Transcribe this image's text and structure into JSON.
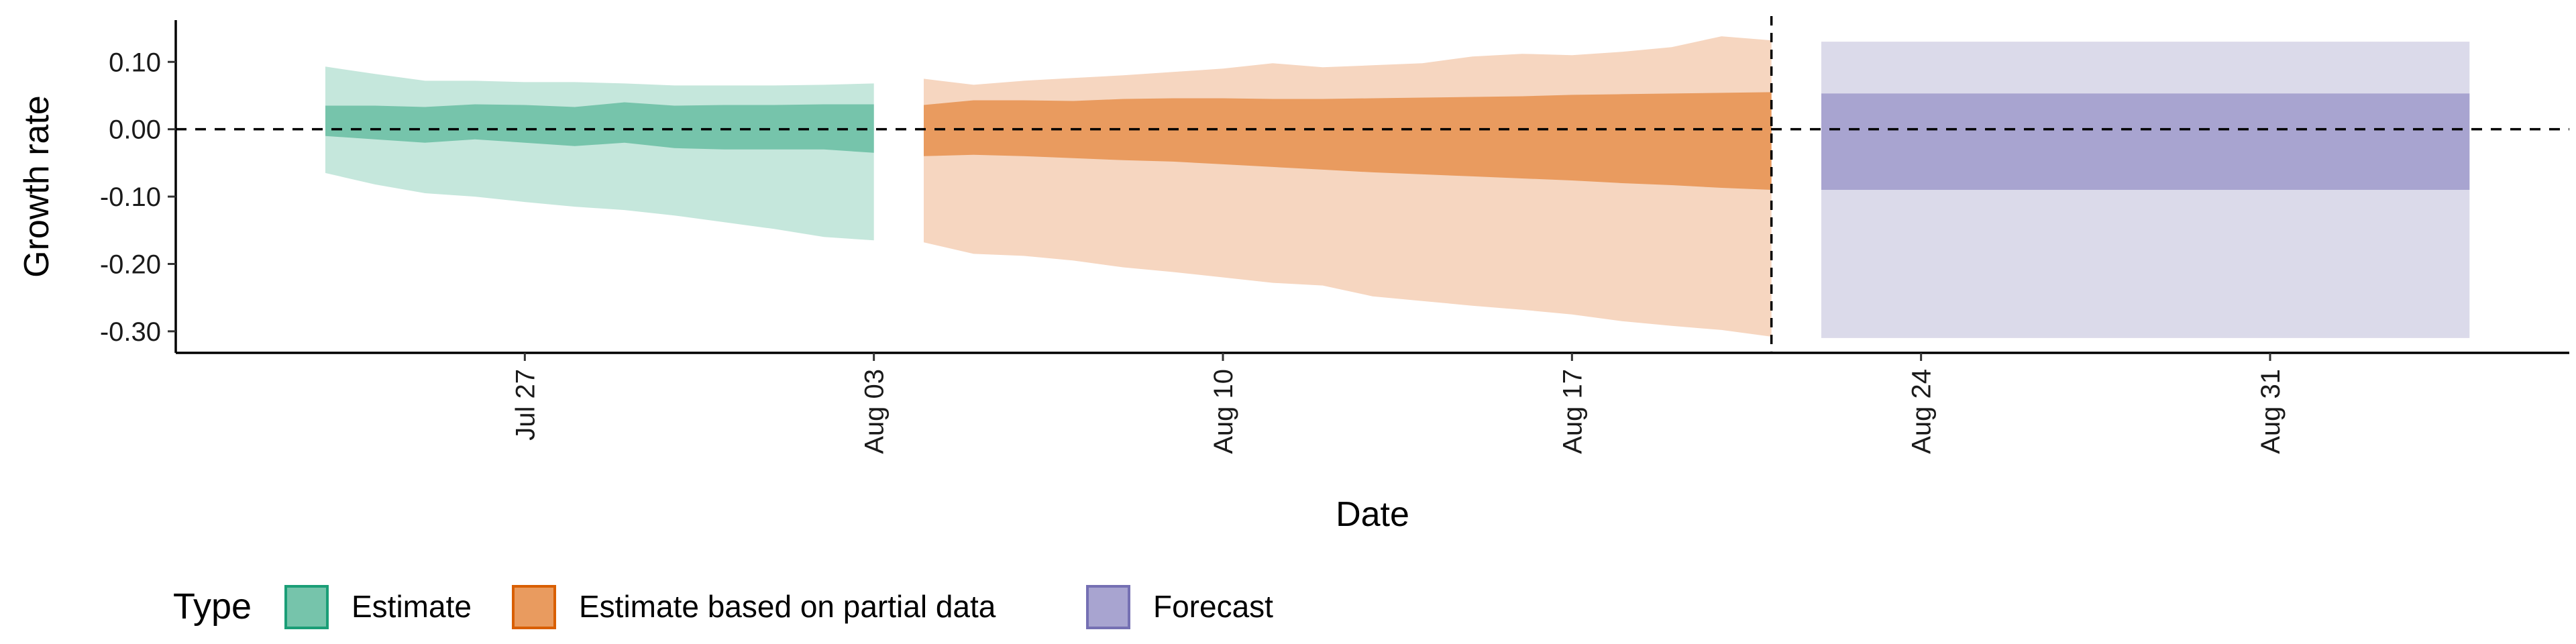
{
  "chart_data": {
    "type": "area",
    "xlabel": "Date",
    "ylabel": "Growth rate",
    "x_ticks": [
      {
        "date": "2020-07-27",
        "label": "Jul 27"
      },
      {
        "date": "2020-08-03",
        "label": "Aug 03"
      },
      {
        "date": "2020-08-10",
        "label": "Aug 10"
      },
      {
        "date": "2020-08-17",
        "label": "Aug 17"
      },
      {
        "date": "2020-08-24",
        "label": "Aug 24"
      },
      {
        "date": "2020-08-31",
        "label": "Aug 31"
      }
    ],
    "y_ticks": [
      {
        "value": 0.1,
        "label": "0.10"
      },
      {
        "value": 0.0,
        "label": "0.00"
      },
      {
        "value": -0.1,
        "label": "-0.10"
      },
      {
        "value": -0.2,
        "label": "-0.20"
      },
      {
        "value": -0.3,
        "label": "-0.30"
      }
    ],
    "xlim": [
      "2020-07-20",
      "2020-09-06"
    ],
    "ylim": [
      -0.332,
      0.162
    ],
    "reference_hline": 0.0,
    "reference_vline": "2020-08-21",
    "grid": false,
    "legend": {
      "title": "Type",
      "position": "bottom-left",
      "entries": [
        {
          "label": "Estimate",
          "fill": "#76c4ab",
          "stroke": "#1b9e77"
        },
        {
          "label": "Estimate based on partial data",
          "fill": "#e99b5f",
          "stroke": "#d95f02"
        },
        {
          "label": "Forecast",
          "fill": "#a8a4d0",
          "stroke": "#7570b3"
        }
      ]
    },
    "series": [
      {
        "name": "Estimate",
        "inner_color": "#76c4ab",
        "outer_color": "#c5e7dc",
        "x": [
          "2020-07-23",
          "2020-07-24",
          "2020-07-25",
          "2020-07-26",
          "2020-07-27",
          "2020-07-28",
          "2020-07-29",
          "2020-07-30",
          "2020-07-31",
          "2020-08-01",
          "2020-08-02",
          "2020-08-03"
        ],
        "lower_90": [
          -0.065,
          -0.082,
          -0.095,
          -0.1,
          -0.108,
          -0.115,
          -0.12,
          -0.128,
          -0.138,
          -0.148,
          -0.16,
          -0.165
        ],
        "lower_50": [
          -0.01,
          -0.015,
          -0.02,
          -0.015,
          -0.02,
          -0.025,
          -0.02,
          -0.028,
          -0.03,
          -0.03,
          -0.03,
          -0.035
        ],
        "upper_50": [
          0.035,
          0.035,
          0.033,
          0.037,
          0.036,
          0.033,
          0.04,
          0.035,
          0.036,
          0.036,
          0.037,
          0.037
        ],
        "upper_90": [
          0.093,
          0.082,
          0.072,
          0.072,
          0.07,
          0.07,
          0.068,
          0.065,
          0.065,
          0.065,
          0.066,
          0.068
        ]
      },
      {
        "name": "Estimate based on partial data",
        "inner_color": "#e99b5f",
        "outer_color": "#f6d6c0",
        "x": [
          "2020-08-04",
          "2020-08-05",
          "2020-08-06",
          "2020-08-07",
          "2020-08-08",
          "2020-08-09",
          "2020-08-10",
          "2020-08-11",
          "2020-08-12",
          "2020-08-13",
          "2020-08-14",
          "2020-08-15",
          "2020-08-16",
          "2020-08-17",
          "2020-08-18",
          "2020-08-19",
          "2020-08-20",
          "2020-08-21"
        ],
        "lower_90": [
          -0.168,
          -0.185,
          -0.188,
          -0.195,
          -0.205,
          -0.212,
          -0.22,
          -0.228,
          -0.232,
          -0.248,
          -0.255,
          -0.262,
          -0.268,
          -0.275,
          -0.285,
          -0.292,
          -0.298,
          -0.308
        ],
        "lower_50": [
          -0.04,
          -0.038,
          -0.04,
          -0.043,
          -0.046,
          -0.048,
          -0.052,
          -0.056,
          -0.06,
          -0.064,
          -0.067,
          -0.07,
          -0.073,
          -0.076,
          -0.08,
          -0.083,
          -0.087,
          -0.09
        ],
        "upper_50": [
          0.036,
          0.043,
          0.043,
          0.042,
          0.045,
          0.046,
          0.046,
          0.045,
          0.045,
          0.046,
          0.047,
          0.048,
          0.049,
          0.051,
          0.052,
          0.053,
          0.054,
          0.055
        ],
        "upper_90": [
          0.075,
          0.066,
          0.072,
          0.076,
          0.08,
          0.085,
          0.09,
          0.098,
          0.092,
          0.095,
          0.098,
          0.108,
          0.112,
          0.11,
          0.115,
          0.122,
          0.138,
          0.132
        ]
      },
      {
        "name": "Forecast",
        "inner_color": "#a8a4d0",
        "outer_color": "#dbdaea",
        "x": [
          "2020-08-22",
          "2020-09-04"
        ],
        "lower_90": [
          -0.31,
          -0.31
        ],
        "lower_50": [
          -0.09,
          -0.09
        ],
        "upper_50": [
          0.053,
          0.053
        ],
        "upper_90": [
          0.13,
          0.13
        ]
      }
    ]
  }
}
